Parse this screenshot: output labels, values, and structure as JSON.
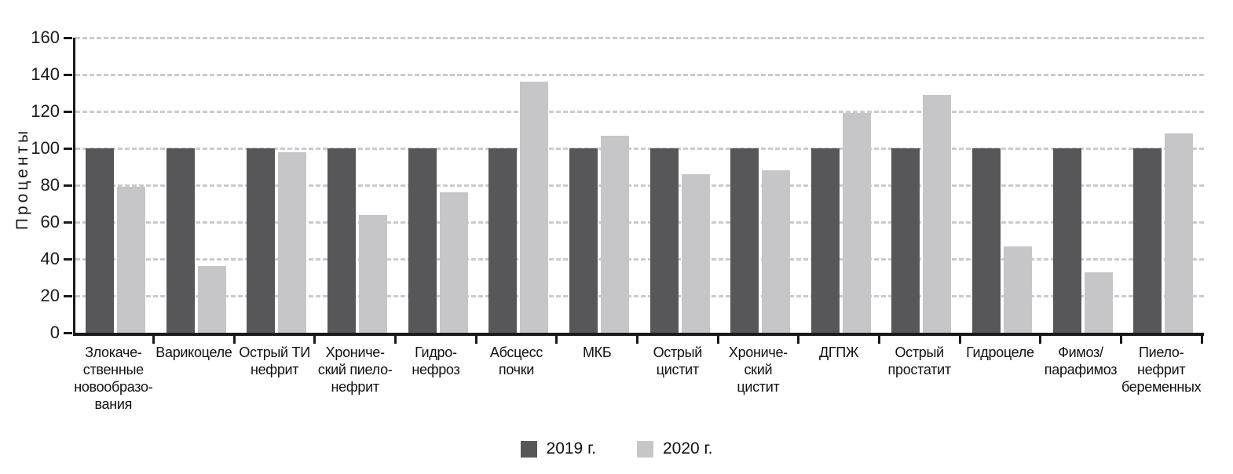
{
  "chart_data": {
    "type": "bar",
    "title": "",
    "xlabel": "",
    "ylabel": "Проценты",
    "ylim": [
      0,
      160
    ],
    "ytick_step": 20,
    "yticks": [
      0,
      20,
      40,
      60,
      80,
      100,
      120,
      140,
      160
    ],
    "grid": "horizontal-dashed",
    "legend_position": "bottom-center",
    "categories": [
      "Злокаче-\nственные\nновообразо-\nвания",
      "Варикоцеле",
      "Острый ТИ\nнефрит",
      "Хрониче-\nский пиело-\nнефрит",
      "Гидро-\nнефроз",
      "Абсцесс\nпочки",
      "МКБ",
      "Острый\nцистит",
      "Хрониче-\nский\nцистит",
      "ДГПЖ",
      "Острый\nпростатит",
      "Гидроцеле",
      "Фимоз/\nпарафимоз",
      "Пиело-\nнефрит\nбеременных"
    ],
    "series": [
      {
        "name": "2019 г.",
        "color": "#57575a",
        "values": [
          100,
          100,
          100,
          100,
          100,
          100,
          100,
          100,
          100,
          100,
          100,
          100,
          100,
          100
        ]
      },
      {
        "name": "2020 г.",
        "color": "#c6c6c8",
        "values": [
          79,
          36,
          98,
          64,
          76,
          136,
          107,
          86,
          88,
          119,
          129,
          47,
          33,
          108
        ]
      }
    ]
  },
  "colors": {
    "background": "#ffffff",
    "axis": "#1a1a1a",
    "gridline": "#cbcbcb",
    "text": "#111111"
  }
}
